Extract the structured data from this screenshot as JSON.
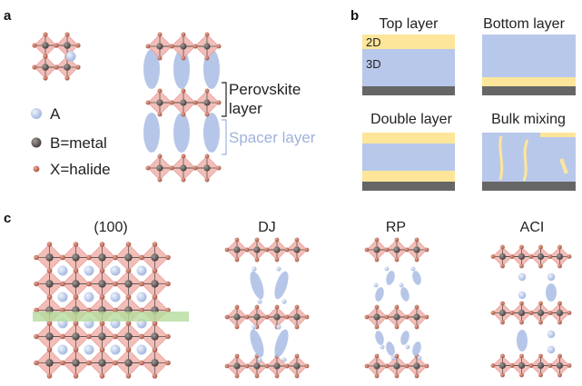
{
  "panels": {
    "a": {
      "letter": "a",
      "legend": [
        {
          "label": "A",
          "kind": "A"
        },
        {
          "label": "B=metal",
          "kind": "B"
        },
        {
          "label": "X=halide",
          "kind": "X"
        }
      ],
      "perovskite_label_1": "Perovskite",
      "perovskite_label_2": "layer",
      "spacer_label": "Spacer layer"
    },
    "b": {
      "letter": "b",
      "cells": [
        {
          "title": "Top layer",
          "tag_2d": "2D",
          "tag_3d": "3D"
        },
        {
          "title": "Bottom layer"
        },
        {
          "title": "Double layer"
        },
        {
          "title": "Bulk mixing"
        }
      ]
    },
    "c": {
      "letter": "c",
      "structures": [
        {
          "title": "(100)"
        },
        {
          "title": "DJ"
        },
        {
          "title": "RP"
        },
        {
          "title": "ACI"
        }
      ]
    }
  },
  "colors": {
    "octahedron": "#f3b8b3",
    "octahedron_edge": "#e79a94",
    "metal": "#6b6461",
    "halide": "#c97563",
    "a_cation": "#b9c9ea",
    "spacer": "#aec0e6",
    "layer_2d": "#fde69a",
    "layer_3d": "#b8c8ea",
    "substrate": "#666666",
    "cut_plane": "#b5dc9c"
  }
}
